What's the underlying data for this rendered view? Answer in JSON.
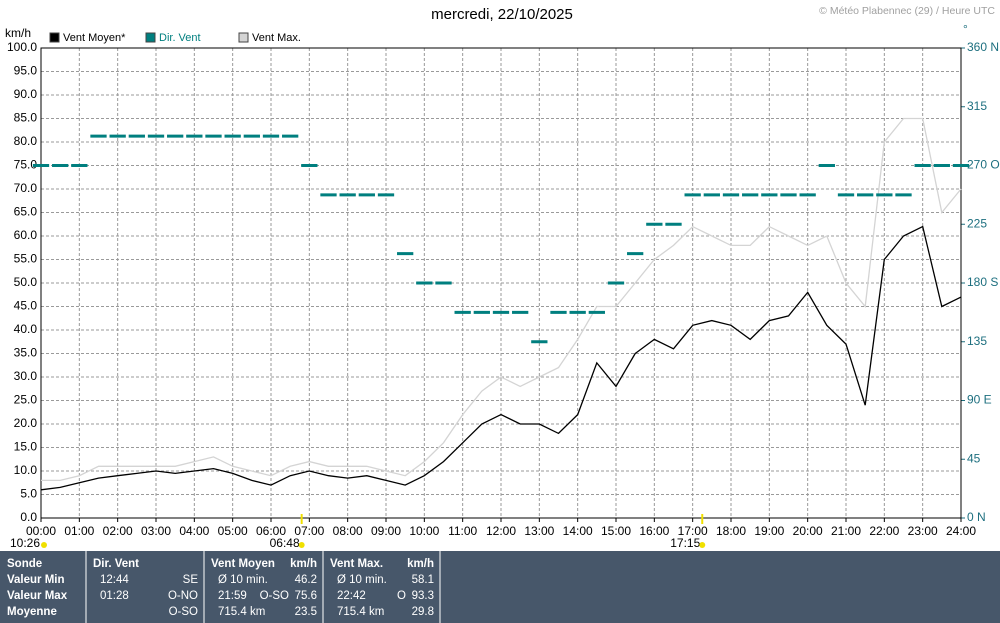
{
  "chart_data": {
    "type": "line",
    "title": "mercredi, 22/10/2025",
    "credit": "© Météo Plabennec (29) / Heure UTC",
    "y_label": "km/h",
    "y2_label": "°",
    "sun": {
      "day_length": "10:26",
      "sunrise": "06:48",
      "sunset": "17:15"
    },
    "x": [
      0,
      0.5,
      1,
      1.5,
      2,
      2.5,
      3,
      3.5,
      4,
      4.5,
      5,
      5.5,
      6,
      6.5,
      7,
      7.5,
      8,
      8.5,
      9,
      9.5,
      10,
      10.5,
      11,
      11.5,
      12,
      12.5,
      13,
      13.5,
      14,
      14.5,
      15,
      15.5,
      16,
      16.5,
      17,
      17.5,
      18,
      18.5,
      19,
      19.5,
      20,
      20.5,
      21,
      21.5,
      22,
      22.5,
      23,
      23.5,
      24
    ],
    "series": [
      {
        "name": "Vent Moyen*",
        "color": "#000000",
        "values": [
          6,
          6.5,
          7.5,
          8.5,
          9,
          9.5,
          10,
          9.5,
          10,
          10.5,
          9.5,
          8,
          7,
          9,
          10,
          9,
          8.5,
          9,
          8,
          7,
          9,
          12,
          16,
          20,
          22,
          20,
          20,
          18,
          22,
          33,
          28,
          35,
          38,
          36,
          41,
          42,
          41,
          38,
          42,
          43,
          48,
          41,
          37,
          24,
          55,
          60,
          62,
          45,
          47
        ]
      },
      {
        "name": "Dir. Vent",
        "color": "#007f7f",
        "axis": "y2",
        "values": [
          270,
          270,
          270,
          292.5,
          292.5,
          292.5,
          292.5,
          292.5,
          292.5,
          292.5,
          292.5,
          292.5,
          292.5,
          292.5,
          270,
          247.5,
          247.5,
          247.5,
          247.5,
          202.5,
          180,
          180,
          157.5,
          157.5,
          157.5,
          157.5,
          135,
          157.5,
          157.5,
          157.5,
          180,
          202.5,
          225,
          225,
          247.5,
          247.5,
          247.5,
          247.5,
          247.5,
          247.5,
          247.5,
          270,
          247.5,
          247.5,
          247.5,
          247.5,
          270,
          270,
          270
        ]
      },
      {
        "name": "Vent Max.",
        "color": "#d4d4d4",
        "values": [
          8,
          8,
          9,
          11,
          11,
          11,
          11,
          11,
          12,
          13,
          11,
          10,
          9,
          11,
          12,
          11,
          11,
          11,
          10,
          9,
          12,
          16,
          22,
          27,
          30,
          28,
          30,
          32,
          38,
          45,
          45,
          50,
          55,
          58,
          62,
          60,
          58,
          58,
          62,
          60,
          58,
          60,
          50,
          45,
          80,
          85,
          85,
          65,
          70
        ]
      }
    ],
    "xlim": [
      0,
      24
    ],
    "xticks": [
      {
        "value": 0,
        "label": "00:00"
      },
      {
        "value": 1,
        "label": "01:00"
      },
      {
        "value": 2,
        "label": "02:00"
      },
      {
        "value": 3,
        "label": "03:00"
      },
      {
        "value": 4,
        "label": "04:00"
      },
      {
        "value": 5,
        "label": "05:00"
      },
      {
        "value": 6,
        "label": "06:00"
      },
      {
        "value": 7,
        "label": "07:00"
      },
      {
        "value": 8,
        "label": "08:00"
      },
      {
        "value": 9,
        "label": "09:00"
      },
      {
        "value": 10,
        "label": "10:00"
      },
      {
        "value": 11,
        "label": "11:00"
      },
      {
        "value": 12,
        "label": "12:00"
      },
      {
        "value": 13,
        "label": "13:00"
      },
      {
        "value": 14,
        "label": "14:00"
      },
      {
        "value": 15,
        "label": "15:00"
      },
      {
        "value": 16,
        "label": "16:00"
      },
      {
        "value": 17,
        "label": "17:00"
      },
      {
        "value": 18,
        "label": "18:00"
      },
      {
        "value": 19,
        "label": "19:00"
      },
      {
        "value": 20,
        "label": "20:00"
      },
      {
        "value": 21,
        "label": "21:00"
      },
      {
        "value": 22,
        "label": "22:00"
      },
      {
        "value": 23,
        "label": "23:00"
      },
      {
        "value": 24,
        "label": "24:00"
      }
    ],
    "ylim": [
      0,
      100
    ],
    "yticks": [
      {
        "value": 0,
        "label": "0.0"
      },
      {
        "value": 5,
        "label": "5.0"
      },
      {
        "value": 10,
        "label": "10.0"
      },
      {
        "value": 15,
        "label": "15.0"
      },
      {
        "value": 20,
        "label": "20.0"
      },
      {
        "value": 25,
        "label": "25.0"
      },
      {
        "value": 30,
        "label": "30.0"
      },
      {
        "value": 35,
        "label": "35.0"
      },
      {
        "value": 40,
        "label": "40.0"
      },
      {
        "value": 45,
        "label": "45.0"
      },
      {
        "value": 50,
        "label": "50.0"
      },
      {
        "value": 55,
        "label": "55.0"
      },
      {
        "value": 60,
        "label": "60.0"
      },
      {
        "value": 65,
        "label": "65.0"
      },
      {
        "value": 70,
        "label": "70.0"
      },
      {
        "value": 75,
        "label": "75.0"
      },
      {
        "value": 80,
        "label": "80.0"
      },
      {
        "value": 85,
        "label": "85.0"
      },
      {
        "value": 90,
        "label": "90.0"
      },
      {
        "value": 95,
        "label": "95.0"
      },
      {
        "value": 100,
        "label": "100.0"
      }
    ],
    "y2lim": [
      0,
      360
    ],
    "y2ticks": [
      {
        "value": 0,
        "label": "0  N"
      },
      45,
      {
        "value": 90,
        "label": "90  E"
      },
      135,
      {
        "value": 180,
        "label": "180 S"
      },
      225,
      {
        "value": 270,
        "label": "270 O"
      },
      315,
      {
        "value": 360,
        "label": "360 N"
      }
    ],
    "grid": true
  },
  "table": {
    "panels": [
      {
        "title": "Sonde",
        "rows": [
          "Valeur Min",
          "Valeur Max",
          "Moyenne"
        ]
      },
      {
        "title": "Dir. Vent",
        "rows": [
          [
            "12:44",
            "SE"
          ],
          [
            "01:28",
            "O-NO"
          ],
          [
            "O-SO"
          ]
        ]
      },
      {
        "title": "Vent Moyen",
        "unit": "km/h",
        "rows": [
          [
            "Ø 10 min.",
            "46.2"
          ],
          [
            "21:59",
            "O-SO",
            "75.6"
          ],
          [
            "715.4 km",
            "23.5"
          ]
        ]
      },
      {
        "title": "Vent Max.",
        "unit": "km/h",
        "rows": [
          [
            "Ø 10 min.",
            "58.1"
          ],
          [
            "22:42",
            "O",
            "93.3"
          ],
          [
            "715.4 km",
            "29.8"
          ]
        ]
      }
    ]
  }
}
